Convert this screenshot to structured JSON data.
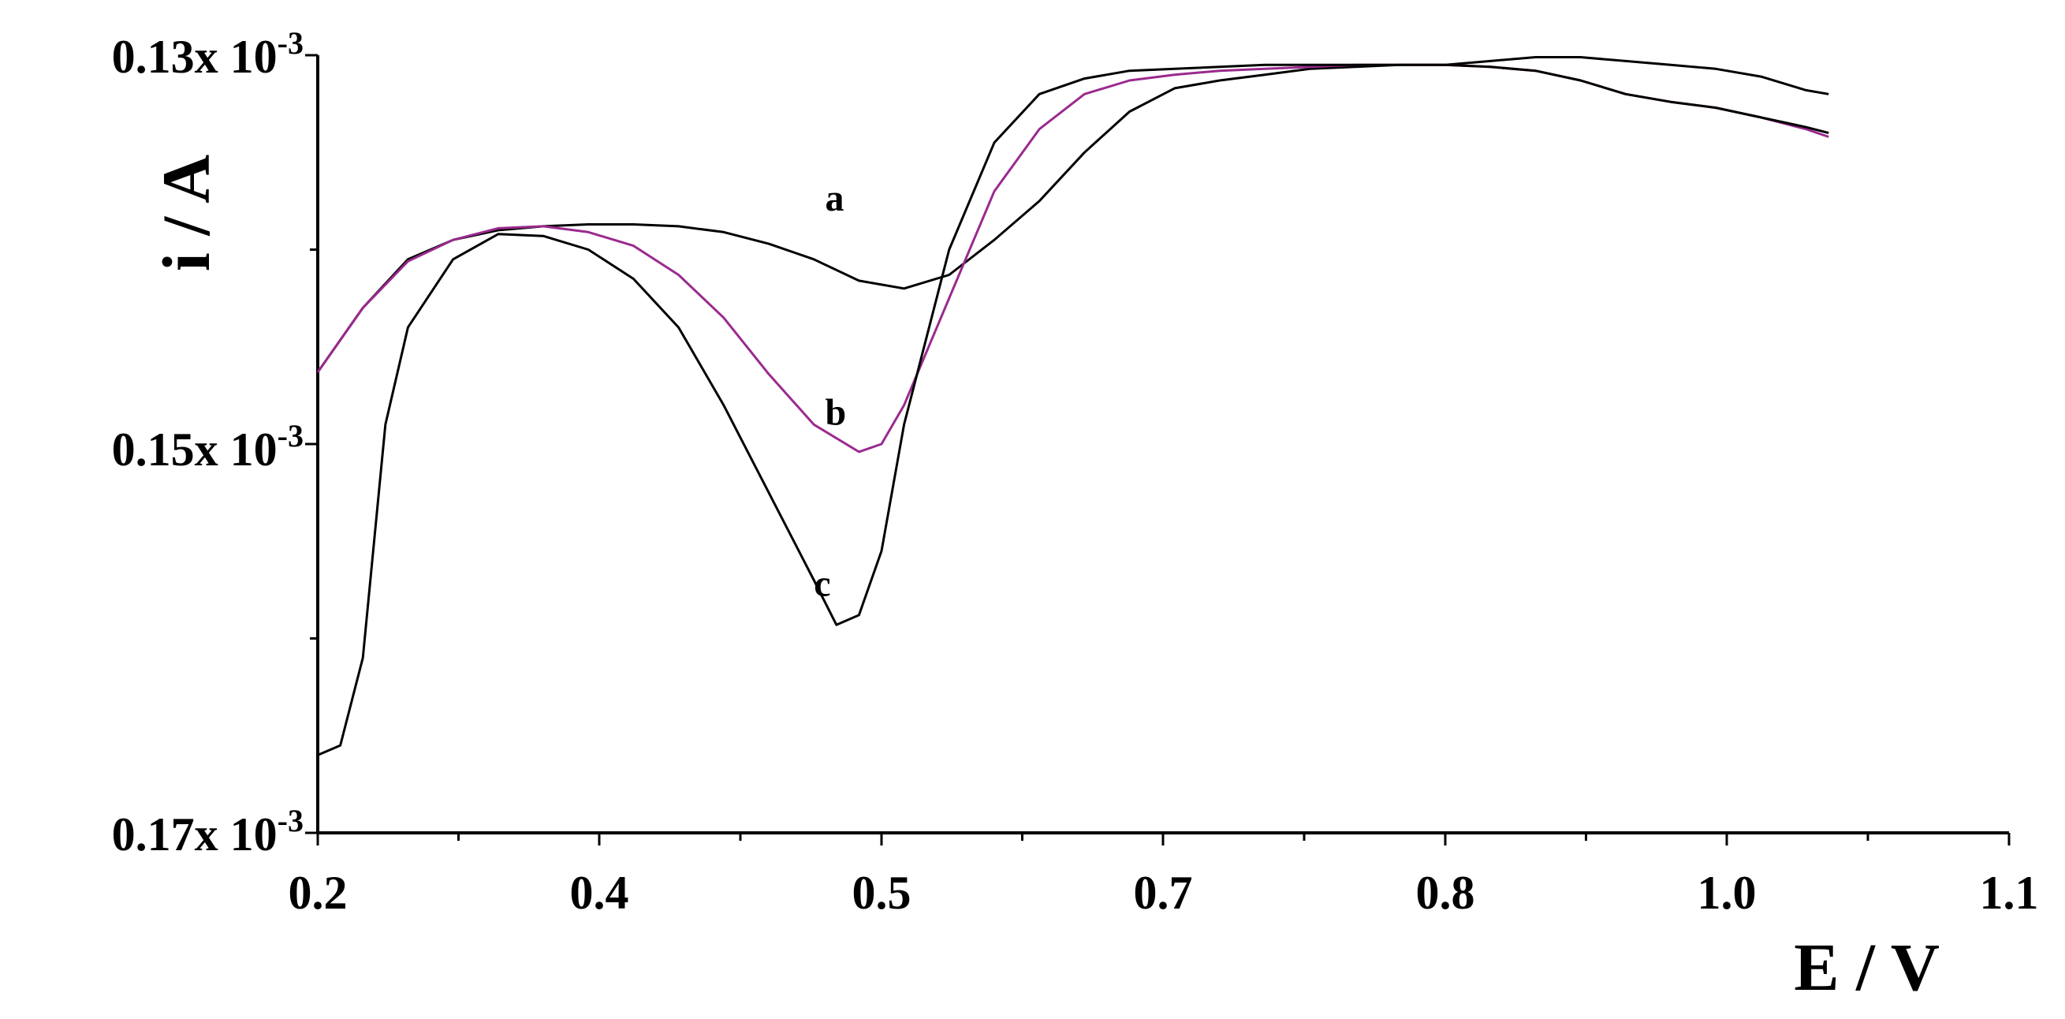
{
  "chart_data": {
    "type": "line",
    "xlabel": "E / V",
    "ylabel": "i / A",
    "x_ticks": [
      "0.2",
      "0.4",
      "0.5",
      "0.7",
      "0.8",
      "1.0",
      "1.1"
    ],
    "y_ticks": [
      {
        "base": "0.13x 10",
        "exp": "-3"
      },
      {
        "base": "0.15x 10",
        "exp": "-3"
      },
      {
        "base": "0.17x 10",
        "exp": "-3"
      }
    ],
    "y_axis_inverted": true,
    "grid": false,
    "legend": "none",
    "series": [
      {
        "name": "a",
        "color": "#000000",
        "points": [
          [
            0.2,
            0.1463
          ],
          [
            0.22,
            0.143
          ],
          [
            0.24,
            0.1405
          ],
          [
            0.26,
            0.1395
          ],
          [
            0.28,
            0.139
          ],
          [
            0.3,
            0.1388
          ],
          [
            0.32,
            0.1387
          ],
          [
            0.34,
            0.1387
          ],
          [
            0.36,
            0.1388
          ],
          [
            0.38,
            0.1391
          ],
          [
            0.4,
            0.1397
          ],
          [
            0.42,
            0.1405
          ],
          [
            0.44,
            0.1416
          ],
          [
            0.46,
            0.142
          ],
          [
            0.48,
            0.1413
          ],
          [
            0.5,
            0.1395
          ],
          [
            0.52,
            0.1375
          ],
          [
            0.54,
            0.135
          ],
          [
            0.56,
            0.1329
          ],
          [
            0.58,
            0.1317
          ],
          [
            0.6,
            0.1313
          ],
          [
            0.62,
            0.131
          ],
          [
            0.64,
            0.1307
          ],
          [
            0.66,
            0.1306
          ],
          [
            0.68,
            0.1305
          ],
          [
            0.7,
            0.1305
          ],
          [
            0.72,
            0.1303
          ],
          [
            0.74,
            0.1301
          ],
          [
            0.76,
            0.1301
          ],
          [
            0.78,
            0.1303
          ],
          [
            0.8,
            0.1305
          ],
          [
            0.82,
            0.1307
          ],
          [
            0.84,
            0.1311
          ],
          [
            0.86,
            0.1318
          ],
          [
            0.87,
            0.132
          ]
        ]
      },
      {
        "name": "b",
        "color": "#9a2a8e",
        "points": [
          [
            0.2,
            0.1463
          ],
          [
            0.22,
            0.143
          ],
          [
            0.24,
            0.1406
          ],
          [
            0.26,
            0.1395
          ],
          [
            0.28,
            0.1389
          ],
          [
            0.3,
            0.1388
          ],
          [
            0.32,
            0.1391
          ],
          [
            0.34,
            0.1398
          ],
          [
            0.36,
            0.1413
          ],
          [
            0.38,
            0.1435
          ],
          [
            0.4,
            0.1464
          ],
          [
            0.42,
            0.149
          ],
          [
            0.44,
            0.1504
          ],
          [
            0.45,
            0.15
          ],
          [
            0.46,
            0.148
          ],
          [
            0.48,
            0.1425
          ],
          [
            0.5,
            0.137
          ],
          [
            0.52,
            0.1338
          ],
          [
            0.54,
            0.132
          ],
          [
            0.56,
            0.1313
          ],
          [
            0.58,
            0.131
          ],
          [
            0.6,
            0.1308
          ],
          [
            0.62,
            0.1307
          ],
          [
            0.64,
            0.1306
          ],
          [
            0.66,
            0.1305
          ],
          [
            0.68,
            0.1305
          ],
          [
            0.7,
            0.1305
          ],
          [
            0.72,
            0.1306
          ],
          [
            0.74,
            0.1308
          ],
          [
            0.76,
            0.1313
          ],
          [
            0.78,
            0.132
          ],
          [
            0.8,
            0.1324
          ],
          [
            0.82,
            0.1327
          ],
          [
            0.84,
            0.1332
          ],
          [
            0.86,
            0.1338
          ],
          [
            0.87,
            0.1342
          ]
        ]
      },
      {
        "name": "c",
        "color": "#000000",
        "points": [
          [
            0.2,
            0.166
          ],
          [
            0.21,
            0.1655
          ],
          [
            0.22,
            0.161
          ],
          [
            0.23,
            0.149
          ],
          [
            0.24,
            0.144
          ],
          [
            0.26,
            0.1405
          ],
          [
            0.28,
            0.1392
          ],
          [
            0.3,
            0.1393
          ],
          [
            0.32,
            0.14
          ],
          [
            0.34,
            0.1415
          ],
          [
            0.36,
            0.144
          ],
          [
            0.38,
            0.148
          ],
          [
            0.4,
            0.1525
          ],
          [
            0.42,
            0.157
          ],
          [
            0.43,
            0.1593
          ],
          [
            0.44,
            0.1588
          ],
          [
            0.45,
            0.1555
          ],
          [
            0.46,
            0.149
          ],
          [
            0.48,
            0.14
          ],
          [
            0.5,
            0.1345
          ],
          [
            0.52,
            0.132
          ],
          [
            0.54,
            0.1312
          ],
          [
            0.56,
            0.1308
          ],
          [
            0.58,
            0.1307
          ],
          [
            0.6,
            0.1306
          ],
          [
            0.62,
            0.1305
          ],
          [
            0.64,
            0.1305
          ],
          [
            0.66,
            0.1305
          ],
          [
            0.68,
            0.1305
          ],
          [
            0.7,
            0.1305
          ],
          [
            0.72,
            0.1306
          ],
          [
            0.74,
            0.1308
          ],
          [
            0.76,
            0.1313
          ],
          [
            0.78,
            0.132
          ],
          [
            0.8,
            0.1324
          ],
          [
            0.82,
            0.1327
          ],
          [
            0.84,
            0.1332
          ],
          [
            0.86,
            0.1337
          ],
          [
            0.87,
            0.134
          ]
        ]
      }
    ],
    "annotations": [
      {
        "text": "a",
        "x": 0.425,
        "y": 0.138
      },
      {
        "text": "b",
        "x": 0.425,
        "y": 0.149
      },
      {
        "text": "c",
        "x": 0.42,
        "y": 0.1578
      }
    ]
  }
}
